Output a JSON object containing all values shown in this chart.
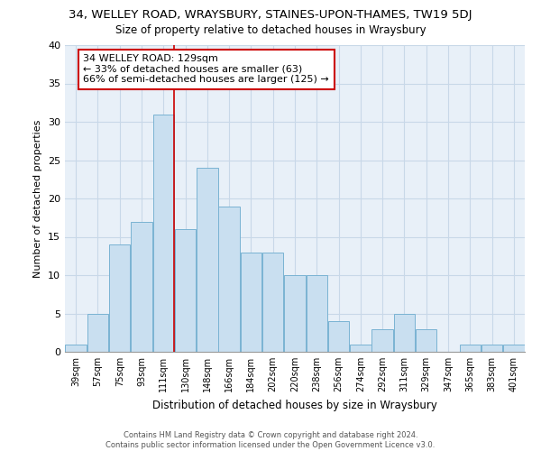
{
  "title": "34, WELLEY ROAD, WRAYSBURY, STAINES-UPON-THAMES, TW19 5DJ",
  "subtitle": "Size of property relative to detached houses in Wraysbury",
  "xlabel": "Distribution of detached houses by size in Wraysbury",
  "ylabel": "Number of detached properties",
  "bin_labels": [
    "39sqm",
    "57sqm",
    "75sqm",
    "93sqm",
    "111sqm",
    "130sqm",
    "148sqm",
    "166sqm",
    "184sqm",
    "202sqm",
    "220sqm",
    "238sqm",
    "256sqm",
    "274sqm",
    "292sqm",
    "311sqm",
    "329sqm",
    "347sqm",
    "365sqm",
    "383sqm",
    "401sqm"
  ],
  "bar_heights": [
    1,
    5,
    14,
    17,
    31,
    16,
    24,
    19,
    13,
    13,
    10,
    10,
    4,
    1,
    3,
    5,
    3,
    0,
    1,
    1,
    1
  ],
  "bar_color": "#c9dff0",
  "bar_edge_color": "#7ab3d3",
  "ylim": [
    0,
    40
  ],
  "yticks": [
    0,
    5,
    10,
    15,
    20,
    25,
    30,
    35,
    40
  ],
  "property_line_color": "#cc0000",
  "annotation_text": "34 WELLEY ROAD: 129sqm\n← 33% of detached houses are smaller (63)\n66% of semi-detached houses are larger (125) →",
  "annotation_box_color": "#ffffff",
  "annotation_box_edge": "#cc0000",
  "footer_line1": "Contains HM Land Registry data © Crown copyright and database right 2024.",
  "footer_line2": "Contains public sector information licensed under the Open Government Licence v3.0.",
  "background_color": "#ffffff",
  "grid_color": "#c8d8e8",
  "plot_bg_color": "#e8f0f8"
}
